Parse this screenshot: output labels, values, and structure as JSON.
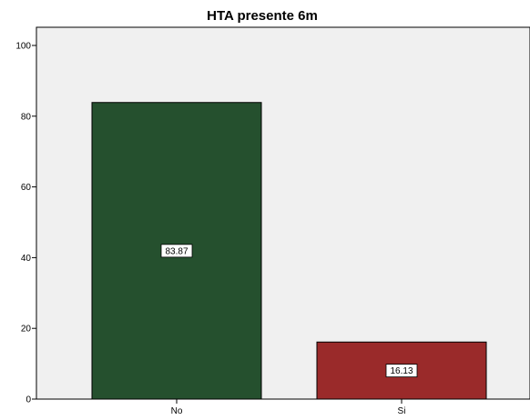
{
  "chart_data": {
    "type": "bar",
    "title": "HTA presente 6m",
    "xlabel": "",
    "ylabel": "",
    "categories": [
      "No",
      "Si"
    ],
    "values": [
      83.87,
      16.13
    ],
    "value_labels": [
      "83.87",
      "16.13"
    ],
    "bar_colors": [
      "#25502e",
      "#9a2a2a"
    ],
    "ylim": [
      0,
      100
    ],
    "yticks": [
      0,
      20,
      40,
      60,
      80,
      100
    ],
    "ytick_labels": [
      "0",
      "20",
      "40",
      "60",
      "80",
      "100"
    ],
    "grid": false,
    "legend": "none",
    "plot_background": "#f0f0f0"
  }
}
